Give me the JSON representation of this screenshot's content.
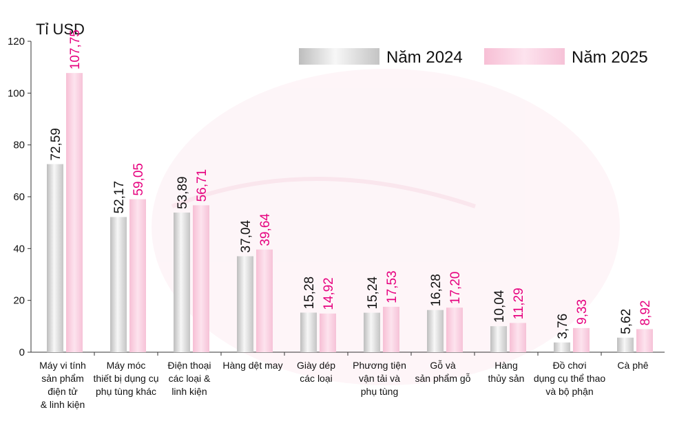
{
  "chart_data": {
    "type": "bar",
    "ylabel": "Tỉ USD",
    "ylim": [
      0,
      120
    ],
    "yticks": [
      0,
      20,
      40,
      60,
      80,
      100,
      120
    ],
    "grid": false,
    "legend_position": "top-right",
    "categories": [
      [
        "Máy vi tính",
        "sản phẩm",
        "điện tử",
        "& linh kiện"
      ],
      [
        "Máy móc",
        "thiết bị dụng cụ",
        "phụ tùng khác"
      ],
      [
        "Điện thoại",
        "các loại &",
        "linh kiện"
      ],
      [
        "Hàng dệt may"
      ],
      [
        "Giày dép",
        "các loại"
      ],
      [
        "Phương tiện",
        "vận tải và",
        "phụ tùng"
      ],
      [
        "Gỗ và",
        "sản phẩm gỗ"
      ],
      [
        "Hàng",
        "thủy sản"
      ],
      [
        "Đồ chơi",
        "dụng cụ thể thao",
        "và bộ phận"
      ],
      [
        "Cà phê"
      ]
    ],
    "series": [
      {
        "name": "Năm 2024",
        "color": "#d9d9d9",
        "label_color": "#111111",
        "values": [
          72.59,
          52.17,
          53.89,
          37.04,
          15.28,
          15.24,
          16.28,
          10.04,
          3.76,
          5.62
        ],
        "labels": [
          "72,59",
          "52,17",
          "53,89",
          "37,04",
          "15,28",
          "15,24",
          "16,28",
          "10,04",
          "3,76",
          "5,62"
        ]
      },
      {
        "name": "Năm 2025",
        "color": "#f9c9dc",
        "label_color": "#e6007e",
        "values": [
          107.75,
          59.05,
          56.71,
          39.64,
          14.92,
          17.53,
          17.2,
          11.29,
          9.33,
          8.92
        ],
        "labels": [
          "107,75",
          "59,05",
          "56,71",
          "39,64",
          "14,92",
          "17,53",
          "17,20",
          "11,29",
          "9,33",
          "8,92"
        ]
      }
    ]
  }
}
